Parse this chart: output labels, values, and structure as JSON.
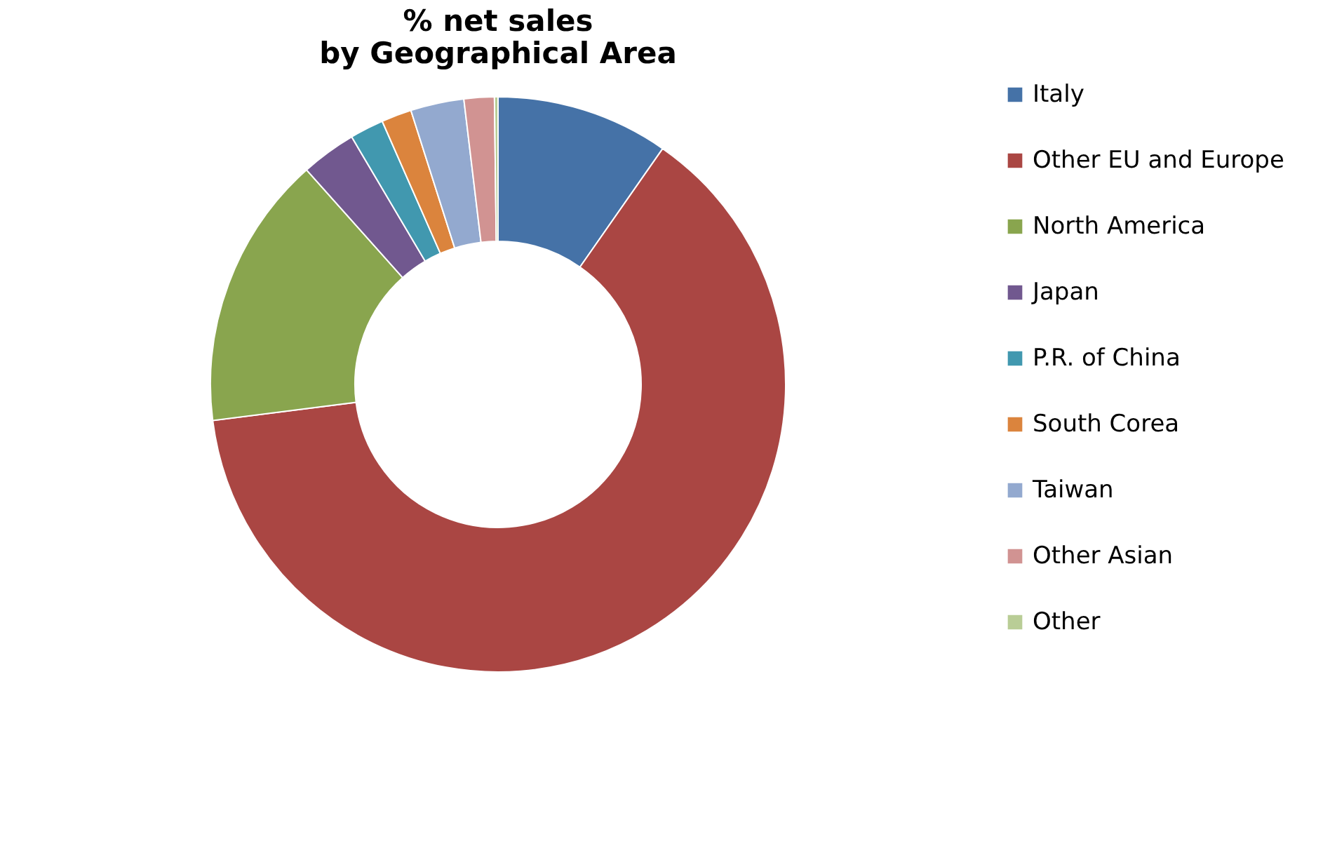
{
  "chart_data": {
    "type": "donut",
    "title": "% net sales\nby Geographical Area",
    "categories": [
      "Italy",
      "Other EU and Europe",
      "North America",
      "Japan",
      "P.R. of China",
      "South Corea",
      "Taiwan",
      "Other Asian",
      "Other"
    ],
    "values": [
      9.7,
      63.3,
      15.4,
      3.1,
      1.9,
      1.7,
      3.0,
      1.7,
      0.2
    ],
    "colors": [
      "#4572a7",
      "#aa4643",
      "#89a54e",
      "#71588f",
      "#4198af",
      "#db843d",
      "#93a9cf",
      "#d19392",
      "#b9cd96"
    ],
    "legend": "right"
  }
}
